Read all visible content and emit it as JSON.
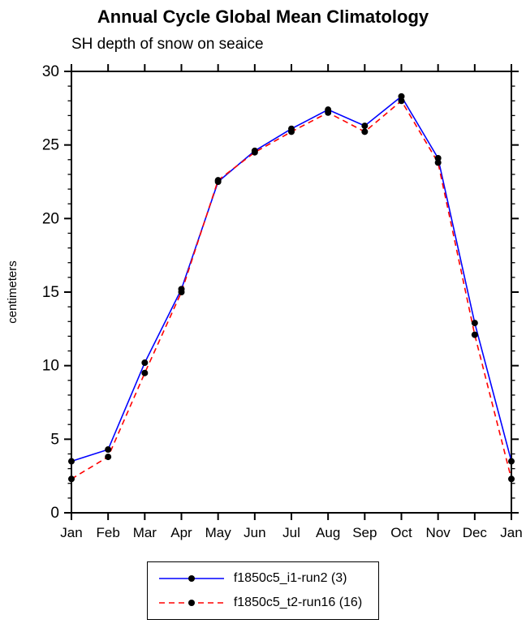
{
  "title": "Annual Cycle Global Mean Climatology",
  "subtitle": "SH depth of snow on seaice",
  "chart_data": {
    "type": "line",
    "x_categories": [
      "Jan",
      "Feb",
      "Mar",
      "Apr",
      "May",
      "Jun",
      "Jul",
      "Aug",
      "Sep",
      "Oct",
      "Nov",
      "Dec",
      "Jan"
    ],
    "xlabel": "",
    "ylabel": "centimeters",
    "ylim": [
      0,
      30
    ],
    "ytick_major_interval": 5,
    "ytick_minor_interval": 1,
    "grid": false,
    "legend_position": "bottom",
    "marker": "black-dot",
    "series": [
      {
        "name": "f1850c5_i1-run2 (3)",
        "color": "#0000ff",
        "style": "solid",
        "values": [
          3.5,
          4.3,
          10.2,
          15.2,
          22.5,
          24.6,
          26.1,
          27.4,
          26.3,
          28.3,
          24.1,
          12.9,
          3.5
        ]
      },
      {
        "name": "f1850c5_t2-run16 (16)",
        "color": "#ff0000",
        "style": "dashed",
        "values": [
          2.3,
          3.8,
          9.5,
          15.0,
          22.6,
          24.5,
          25.9,
          27.2,
          25.9,
          28.0,
          23.8,
          12.1,
          2.3
        ]
      }
    ]
  }
}
